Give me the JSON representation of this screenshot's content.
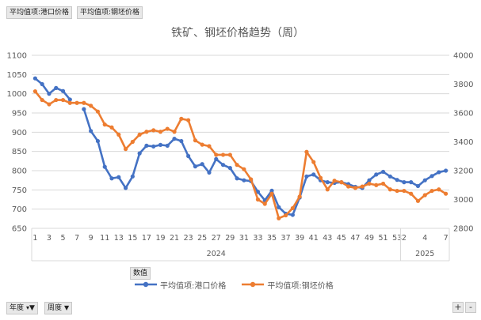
{
  "filter_buttons": {
    "port": "平均值项:港口价格",
    "billet": "平均值项:钢坯价格"
  },
  "value_button": "数值",
  "footer": {
    "year_field": "年度",
    "week_field": "周度",
    "expand": "+",
    "collapse": "-"
  },
  "colors": {
    "port": "#4472C4",
    "billet": "#ED7D31",
    "grid": "#d9d9d9",
    "axis_text": "#595959"
  },
  "chart_data": {
    "type": "line",
    "title": "铁矿、钢坯价格趋势（周）",
    "left_axis": {
      "min": 650,
      "max": 1100,
      "ticks": [
        650,
        700,
        750,
        800,
        850,
        900,
        950,
        1000,
        1050,
        1100
      ]
    },
    "right_axis": {
      "min": 2800,
      "max": 4000,
      "ticks": [
        2800,
        3000,
        3200,
        3400,
        3600,
        3800,
        4000
      ]
    },
    "x_tick_labels": [
      "1",
      "3",
      "5",
      "7",
      "9",
      "11",
      "13",
      "15",
      "17",
      "19",
      "21",
      "23",
      "25",
      "27",
      "29",
      "31",
      "33",
      "35",
      "37",
      "39",
      "41",
      "43",
      "45",
      "47",
      "49",
      "51",
      "53",
      "2",
      "4",
      "7"
    ],
    "year_groups": [
      {
        "label": "2024",
        "points": 53
      },
      {
        "label": "2025",
        "points": 7
      }
    ],
    "legend_position": "bottom",
    "grid": true,
    "series": [
      {
        "name": "平均值项:港口价格",
        "axis": "left",
        "values": [
          1040,
          1025,
          1000,
          1015,
          1007,
          985,
          null,
          960,
          903,
          877,
          810,
          780,
          783,
          755,
          785,
          845,
          865,
          863,
          867,
          865,
          883,
          877,
          838,
          811,
          817,
          795,
          830,
          815,
          807,
          780,
          775,
          773,
          745,
          723,
          748,
          705,
          688,
          685,
          730,
          785,
          790,
          775,
          770,
          768,
          770,
          765,
          758,
          755,
          775,
          790,
          797,
          785,
          776,
          770,
          770,
          760,
          775,
          786,
          796,
          800
        ],
        "color": "#4472C4"
      },
      {
        "name": "平均值项:钢坯价格",
        "axis": "right",
        "values": [
          3750,
          3690,
          3660,
          3690,
          3690,
          3670,
          3670,
          3670,
          3650,
          3610,
          3520,
          3500,
          3450,
          3350,
          3400,
          3450,
          3470,
          3480,
          3470,
          3490,
          3470,
          3560,
          3550,
          3410,
          3380,
          3370,
          3310,
          3310,
          3310,
          3240,
          3210,
          3140,
          3000,
          2970,
          3040,
          2870,
          2890,
          2940,
          3020,
          3330,
          3260,
          3150,
          3070,
          3130,
          3120,
          3090,
          3080,
          3090,
          3110,
          3100,
          3110,
          3070,
          3060,
          3060,
          3040,
          2990,
          3030,
          3060,
          3070,
          3040
        ],
        "color": "#ED7D31"
      }
    ]
  }
}
